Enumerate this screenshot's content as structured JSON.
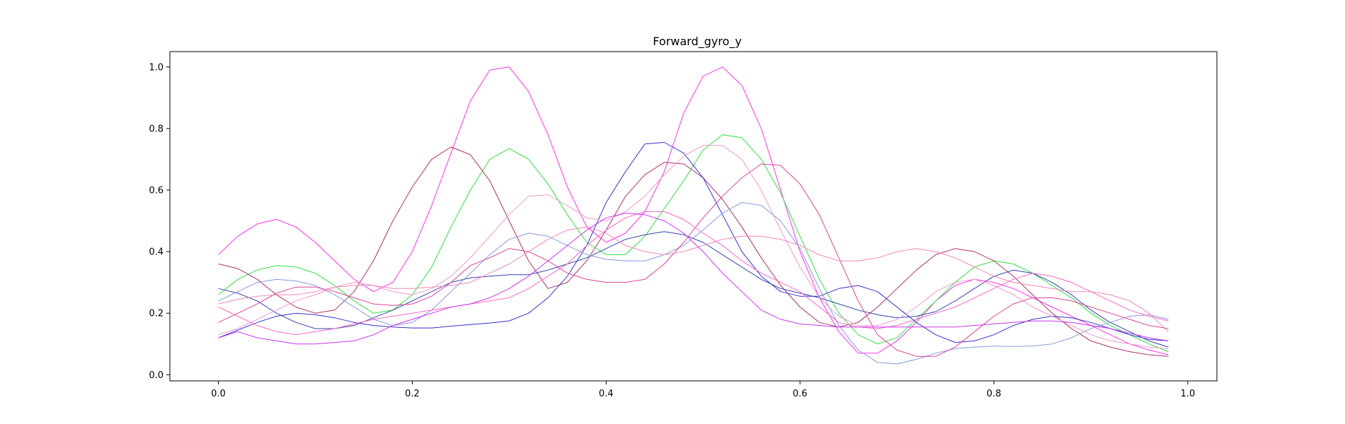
{
  "chart_data": {
    "type": "line",
    "title": "Forward_gyro_y",
    "xlabel": "",
    "ylabel": "",
    "xlim": [
      -0.05,
      1.03
    ],
    "ylim": [
      -0.02,
      1.05
    ],
    "grid": false,
    "x_ticks": [
      "0.0",
      "0.2",
      "0.4",
      "0.6",
      "0.8",
      "1.0"
    ],
    "y_ticks": [
      "0.0",
      "0.2",
      "0.4",
      "0.6",
      "0.8",
      "1.0"
    ],
    "x": [
      0.0,
      0.02,
      0.04,
      0.06,
      0.08,
      0.1,
      0.12,
      0.14,
      0.16,
      0.18,
      0.2,
      0.22,
      0.24,
      0.26,
      0.28,
      0.3,
      0.32,
      0.34,
      0.36,
      0.38,
      0.4,
      0.42,
      0.44,
      0.46,
      0.48,
      0.5,
      0.52,
      0.54,
      0.56,
      0.58,
      0.6,
      0.62,
      0.64,
      0.66,
      0.68,
      0.7,
      0.72,
      0.74,
      0.76,
      0.78,
      0.8,
      0.82,
      0.84,
      0.86,
      0.88,
      0.9,
      0.92,
      0.94,
      0.96,
      0.98
    ],
    "series": [
      {
        "color": "#ff33ee",
        "values": [
          0.39,
          0.45,
          0.49,
          0.505,
          0.48,
          0.43,
          0.37,
          0.31,
          0.27,
          0.3,
          0.4,
          0.55,
          0.72,
          0.89,
          0.99,
          1.0,
          0.92,
          0.78,
          0.61,
          0.48,
          0.43,
          0.46,
          0.53,
          0.66,
          0.85,
          0.97,
          1.0,
          0.94,
          0.8,
          0.6,
          0.4,
          0.25,
          0.14,
          0.07,
          0.07,
          0.11,
          0.17,
          0.24,
          0.29,
          0.31,
          0.3,
          0.28,
          0.25,
          0.22,
          0.19,
          0.16,
          0.13,
          0.1,
          0.08,
          0.065
        ]
      },
      {
        "color": "#33dd44",
        "values": [
          0.26,
          0.31,
          0.34,
          0.355,
          0.35,
          0.33,
          0.29,
          0.24,
          0.2,
          0.21,
          0.26,
          0.35,
          0.48,
          0.6,
          0.7,
          0.735,
          0.7,
          0.62,
          0.52,
          0.43,
          0.39,
          0.39,
          0.45,
          0.54,
          0.63,
          0.73,
          0.78,
          0.77,
          0.7,
          0.59,
          0.45,
          0.31,
          0.2,
          0.13,
          0.1,
          0.12,
          0.18,
          0.24,
          0.3,
          0.35,
          0.37,
          0.36,
          0.33,
          0.29,
          0.25,
          0.2,
          0.16,
          0.13,
          0.1,
          0.075
        ]
      },
      {
        "color": "#aa3366",
        "values": [
          0.36,
          0.345,
          0.31,
          0.26,
          0.22,
          0.2,
          0.21,
          0.27,
          0.37,
          0.5,
          0.61,
          0.7,
          0.74,
          0.715,
          0.63,
          0.5,
          0.37,
          0.28,
          0.3,
          0.37,
          0.47,
          0.58,
          0.65,
          0.69,
          0.685,
          0.64,
          0.57,
          0.48,
          0.38,
          0.29,
          0.22,
          0.17,
          0.155,
          0.17,
          0.22,
          0.28,
          0.34,
          0.39,
          0.41,
          0.4,
          0.37,
          0.32,
          0.26,
          0.2,
          0.15,
          0.11,
          0.09,
          0.075,
          0.065,
          0.06
        ]
      },
      {
        "color": "#3333cc",
        "values": [
          0.12,
          0.145,
          0.17,
          0.19,
          0.2,
          0.195,
          0.185,
          0.17,
          0.16,
          0.155,
          0.152,
          0.152,
          0.158,
          0.163,
          0.168,
          0.175,
          0.2,
          0.25,
          0.32,
          0.42,
          0.56,
          0.66,
          0.75,
          0.755,
          0.72,
          0.64,
          0.52,
          0.4,
          0.32,
          0.27,
          0.255,
          0.255,
          0.28,
          0.29,
          0.27,
          0.22,
          0.17,
          0.13,
          0.105,
          0.11,
          0.13,
          0.16,
          0.18,
          0.19,
          0.185,
          0.17,
          0.15,
          0.13,
          0.115,
          0.11
        ]
      },
      {
        "color": "#3344aa",
        "values": [
          0.28,
          0.265,
          0.24,
          0.2,
          0.17,
          0.15,
          0.15,
          0.16,
          0.185,
          0.21,
          0.24,
          0.27,
          0.3,
          0.315,
          0.32,
          0.325,
          0.325,
          0.34,
          0.36,
          0.38,
          0.41,
          0.44,
          0.455,
          0.465,
          0.455,
          0.43,
          0.39,
          0.35,
          0.31,
          0.28,
          0.265,
          0.25,
          0.23,
          0.21,
          0.195,
          0.185,
          0.19,
          0.205,
          0.24,
          0.28,
          0.32,
          0.34,
          0.33,
          0.3,
          0.26,
          0.21,
          0.17,
          0.14,
          0.11,
          0.09
        ]
      },
      {
        "color": "#8899dd",
        "values": [
          0.24,
          0.27,
          0.3,
          0.31,
          0.305,
          0.29,
          0.26,
          0.22,
          0.18,
          0.16,
          0.17,
          0.21,
          0.27,
          0.33,
          0.39,
          0.44,
          0.46,
          0.45,
          0.42,
          0.39,
          0.375,
          0.37,
          0.37,
          0.39,
          0.42,
          0.47,
          0.525,
          0.56,
          0.55,
          0.5,
          0.41,
          0.28,
          0.16,
          0.08,
          0.04,
          0.035,
          0.05,
          0.07,
          0.085,
          0.09,
          0.093,
          0.092,
          0.093,
          0.1,
          0.12,
          0.15,
          0.17,
          0.19,
          0.195,
          0.18
        ]
      },
      {
        "color": "#dd4499",
        "values": [
          0.17,
          0.2,
          0.23,
          0.265,
          0.285,
          0.285,
          0.27,
          0.25,
          0.23,
          0.225,
          0.23,
          0.255,
          0.3,
          0.355,
          0.38,
          0.41,
          0.4,
          0.37,
          0.33,
          0.31,
          0.3,
          0.3,
          0.31,
          0.36,
          0.43,
          0.51,
          0.58,
          0.64,
          0.685,
          0.68,
          0.62,
          0.52,
          0.38,
          0.24,
          0.13,
          0.08,
          0.06,
          0.06,
          0.09,
          0.14,
          0.19,
          0.23,
          0.25,
          0.25,
          0.24,
          0.22,
          0.2,
          0.18,
          0.16,
          0.15
        ]
      },
      {
        "color": "#ee99cc",
        "values": [
          0.13,
          0.15,
          0.18,
          0.21,
          0.24,
          0.26,
          0.285,
          0.3,
          0.29,
          0.27,
          0.26,
          0.28,
          0.32,
          0.38,
          0.45,
          0.52,
          0.58,
          0.585,
          0.55,
          0.51,
          0.5,
          0.53,
          0.58,
          0.65,
          0.71,
          0.745,
          0.745,
          0.7,
          0.6,
          0.47,
          0.35,
          0.25,
          0.19,
          0.16,
          0.16,
          0.18,
          0.22,
          0.27,
          0.3,
          0.31,
          0.29,
          0.26,
          0.22,
          0.19,
          0.16,
          0.13,
          0.11,
          0.1,
          0.09,
          0.085
        ]
      },
      {
        "color": "#ff66cc",
        "values": [
          0.22,
          0.19,
          0.16,
          0.14,
          0.13,
          0.14,
          0.15,
          0.165,
          0.18,
          0.19,
          0.2,
          0.21,
          0.22,
          0.23,
          0.24,
          0.25,
          0.28,
          0.32,
          0.36,
          0.42,
          0.47,
          0.51,
          0.53,
          0.53,
          0.505,
          0.46,
          0.42,
          0.37,
          0.33,
          0.3,
          0.27,
          0.22,
          0.17,
          0.155,
          0.15,
          0.16,
          0.18,
          0.2,
          0.22,
          0.25,
          0.28,
          0.31,
          0.33,
          0.32,
          0.3,
          0.27,
          0.24,
          0.21,
          0.19,
          0.175
        ]
      },
      {
        "color": "#ee88bb",
        "values": [
          0.23,
          0.245,
          0.255,
          0.26,
          0.26,
          0.27,
          0.285,
          0.29,
          0.29,
          0.28,
          0.28,
          0.285,
          0.29,
          0.3,
          0.33,
          0.36,
          0.4,
          0.44,
          0.47,
          0.48,
          0.46,
          0.42,
          0.4,
          0.39,
          0.4,
          0.42,
          0.44,
          0.45,
          0.45,
          0.44,
          0.42,
          0.39,
          0.37,
          0.37,
          0.38,
          0.4,
          0.41,
          0.4,
          0.38,
          0.35,
          0.32,
          0.3,
          0.29,
          0.28,
          0.27,
          0.27,
          0.26,
          0.24,
          0.2,
          0.14
        ]
      },
      {
        "color": "#cc33ee",
        "values": [
          0.12,
          0.14,
          0.12,
          0.11,
          0.1,
          0.1,
          0.105,
          0.11,
          0.13,
          0.16,
          0.18,
          0.2,
          0.22,
          0.23,
          0.25,
          0.28,
          0.32,
          0.37,
          0.42,
          0.47,
          0.51,
          0.525,
          0.52,
          0.5,
          0.46,
          0.4,
          0.33,
          0.27,
          0.21,
          0.18,
          0.165,
          0.16,
          0.155,
          0.155,
          0.155,
          0.155,
          0.155,
          0.155,
          0.155,
          0.16,
          0.165,
          0.17,
          0.175,
          0.175,
          0.17,
          0.16,
          0.15,
          0.135,
          0.12,
          0.11
        ]
      }
    ]
  }
}
